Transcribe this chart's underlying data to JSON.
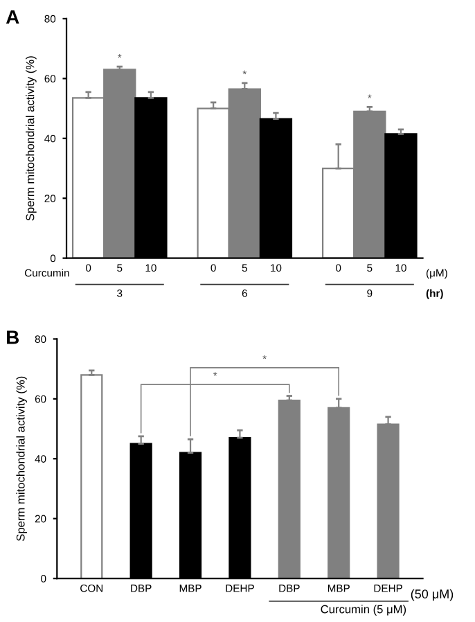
{
  "chart_data": [
    {
      "type": "bar",
      "title": "A",
      "ylabel": "Sperm mitochondrial activity (%)",
      "categories": [
        "0",
        "5",
        "10",
        null,
        "0",
        "5",
        "10",
        null,
        "0",
        "5",
        "10"
      ],
      "values": [
        53.5,
        63,
        53.5,
        null,
        50,
        56.5,
        46.5,
        null,
        30,
        49,
        41.5
      ],
      "errors": [
        [
          53.5,
          55.5
        ],
        [
          63,
          64
        ],
        [
          53.5,
          55.5
        ],
        null,
        [
          50,
          52
        ],
        [
          56.5,
          58.5
        ],
        [
          46.5,
          48.5
        ],
        null,
        [
          30,
          38
        ],
        [
          49,
          50.5
        ],
        [
          41.5,
          43
        ]
      ],
      "colors": [
        "#ffffff",
        "#808080",
        "#000000",
        null,
        "#ffffff",
        "#808080",
        "#000000",
        null,
        "#ffffff",
        "#808080",
        "#000000"
      ],
      "value_labels": [
        null,
        "*",
        null,
        null,
        null,
        "*",
        null,
        null,
        null,
        "*",
        null
      ],
      "annotations": [
        "Curcumin",
        "(μM)",
        "3",
        "6",
        "9",
        "(hr)"
      ],
      "ylim": [
        0,
        80
      ],
      "yticks": [
        0,
        20,
        40,
        60,
        80
      ],
      "grid": false,
      "legend": false
    },
    {
      "type": "bar",
      "title": "B",
      "ylabel": "Sperm mitochondrial activity (%)",
      "categories": [
        "CON",
        "DBP",
        "MBP",
        "DEHP",
        "DBP",
        "MBP",
        "DEHP"
      ],
      "values": [
        68,
        45,
        42,
        47,
        59.5,
        57,
        51.5
      ],
      "errors": [
        [
          68,
          69.5
        ],
        [
          45,
          47.5
        ],
        [
          42,
          46.5
        ],
        [
          47,
          49.5
        ],
        [
          59.5,
          61
        ],
        [
          57,
          60
        ],
        [
          51.5,
          54
        ]
      ],
      "colors": [
        "#ffffff",
        "#000000",
        "#000000",
        "#000000",
        "#808080",
        "#808080",
        "#808080"
      ],
      "annotations": [
        "*",
        "*",
        "(50 μM)",
        "Curcumin (5 μM)"
      ],
      "ylim": [
        0,
        80
      ],
      "yticks": [
        0,
        20,
        40,
        60,
        80
      ],
      "grid": false,
      "legend": false
    }
  ]
}
